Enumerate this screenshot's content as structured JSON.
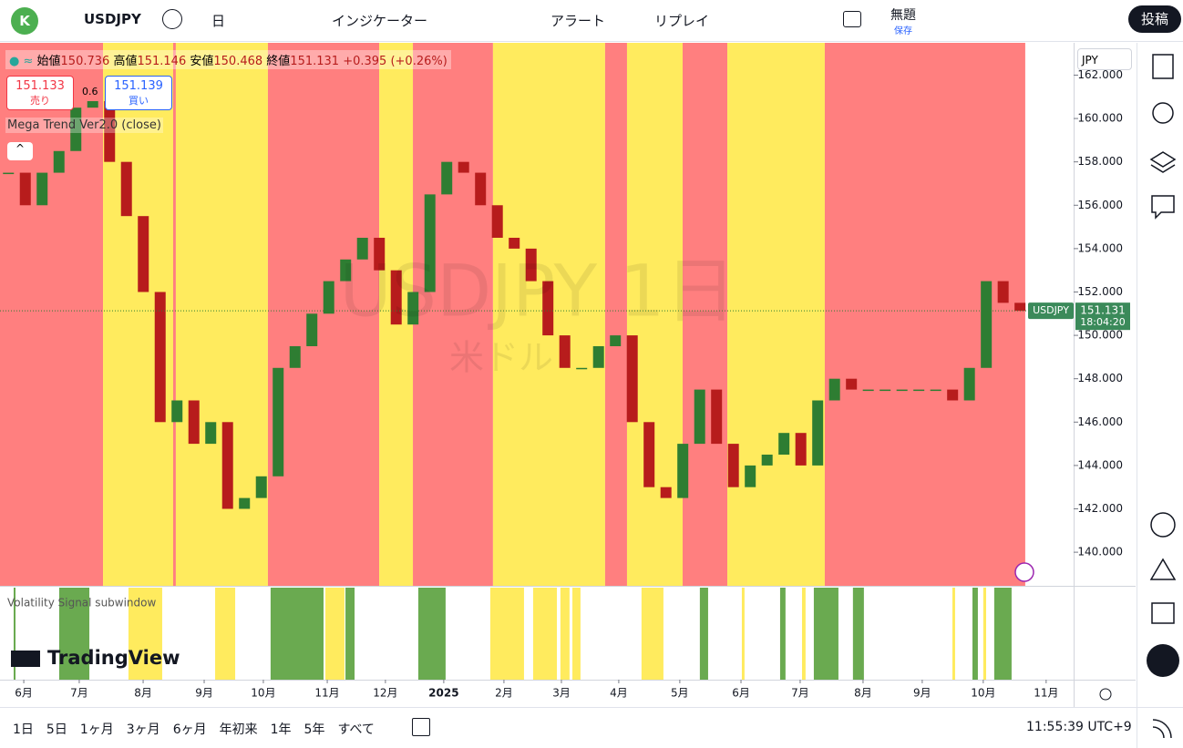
{
  "toolbar": {
    "avatar": "K",
    "symbol": "USDJPY",
    "interval": "日",
    "indicators": "インジケーター",
    "alert": "アラート",
    "replay": "リプレイ",
    "layout_name": "無題",
    "save": "保存",
    "publish": "投稿"
  },
  "legend": {
    "open_label": "始値",
    "open": 150.736,
    "high_label": "高値",
    "high": 151.146,
    "low_label": "安値",
    "low": 150.468,
    "close_label": "終値",
    "close": 151.131,
    "change": "+0.395",
    "change_pct": "(+0.26%)"
  },
  "trade": {
    "sell_price": "151.133",
    "sell": "売り",
    "spread": "0.6",
    "buy_price": "151.139",
    "buy": "買い"
  },
  "indicator": "Mega Trend Ver2.0 (close)",
  "watermark": {
    "title": "USDJPY 1日",
    "subtitle": "米ドル"
  },
  "subwindow_title": "Volatility Signal subwindow",
  "logo": "TradingView",
  "currency": "JPY",
  "price_tag": {
    "symbol": "USDJPY",
    "countdown": "18:04:20"
  },
  "ranges": [
    "1日",
    "5日",
    "1ヶ月",
    "3ヶ月",
    "6ヶ月",
    "年初来",
    "1年",
    "5年",
    "すべて"
  ],
  "clock": "11:55:39 UTC+9",
  "chart_data": {
    "type": "candlestick",
    "closes": [
      157.5,
      156,
      157.5,
      158.5,
      160.5,
      160.8,
      158,
      155.5,
      152,
      146,
      147,
      145,
      146,
      142,
      142.5,
      143.5,
      148.5,
      149.5,
      151,
      152.5,
      153.5,
      154.5,
      153,
      150.5,
      152,
      156.5,
      158,
      157.5,
      156,
      154.5,
      154,
      152.5,
      150,
      148.5,
      148.5,
      149.5,
      150,
      146,
      143,
      142.5,
      145,
      147.5,
      145,
      143,
      144,
      144.5,
      145.5,
      144,
      147,
      148,
      147.5,
      147.5,
      147.5,
      147.5,
      147.5,
      147.5,
      147,
      148.5,
      152.5,
      151.5,
      151.131
    ],
    "up_color": "#2e7d32",
    "down_color": "#b71c1c",
    "xlim": [
      0,
      63.68
    ],
    "ylim": [
      138.45,
      163.49
    ],
    "yticks": [
      {
        "value": 140,
        "label": "140.000"
      },
      {
        "value": 142,
        "label": "142.000"
      },
      {
        "value": 144,
        "label": "144.000"
      },
      {
        "value": 146,
        "label": "146.000"
      },
      {
        "value": 148,
        "label": "148.000"
      },
      {
        "value": 150,
        "label": "150.000"
      },
      {
        "value": 152,
        "label": "152.000"
      },
      {
        "value": 154,
        "label": "154.000"
      },
      {
        "value": 156,
        "label": "156.000"
      },
      {
        "value": 158,
        "label": "158.000"
      },
      {
        "value": 160,
        "label": "160.000"
      },
      {
        "value": 162,
        "label": "162.000"
      }
    ],
    "xticks": [
      {
        "value": 1.41,
        "label": "6月"
      },
      {
        "value": 4.7,
        "label": "7月"
      },
      {
        "value": 8.49,
        "label": "8月"
      },
      {
        "value": 12.11,
        "label": "9月"
      },
      {
        "value": 15.62,
        "label": "10月"
      },
      {
        "value": 19.41,
        "label": "11月"
      },
      {
        "value": 22.86,
        "label": "12月"
      },
      {
        "value": 26.32,
        "label": "2025"
      },
      {
        "value": 29.89,
        "label": "2月"
      },
      {
        "value": 33.3,
        "label": "3月"
      },
      {
        "value": 36.7,
        "label": "4月"
      },
      {
        "value": 40.32,
        "label": "5月"
      },
      {
        "value": 43.95,
        "label": "6月"
      },
      {
        "value": 47.46,
        "label": "7月"
      },
      {
        "value": 51.19,
        "label": "8月"
      },
      {
        "value": 54.7,
        "label": "9月"
      },
      {
        "value": 58.32,
        "label": "10月"
      },
      {
        "value": 62.05,
        "label": "11月"
      }
    ],
    "bands": [
      {
        "from": 0,
        "to": 6.11,
        "color": "#ff7f7f"
      },
      {
        "from": 6.11,
        "to": 10.27,
        "color": "#ffeb5e"
      },
      {
        "from": 10.27,
        "to": 10.43,
        "color": "#ff7f7f"
      },
      {
        "from": 10.43,
        "to": 15.89,
        "color": "#ffeb5e"
      },
      {
        "from": 15.89,
        "to": 22.49,
        "color": "#ff7f7f"
      },
      {
        "from": 22.49,
        "to": 24.49,
        "color": "#ffeb5e"
      },
      {
        "from": 24.49,
        "to": 29.24,
        "color": "#ff7f7f"
      },
      {
        "from": 29.24,
        "to": 35.89,
        "color": "#ffeb5e"
      },
      {
        "from": 35.89,
        "to": 37.19,
        "color": "#ff7f7f"
      },
      {
        "from": 37.19,
        "to": 40.49,
        "color": "#ffeb5e"
      },
      {
        "from": 40.49,
        "to": 43.14,
        "color": "#ff7f7f"
      },
      {
        "from": 43.14,
        "to": 48.92,
        "color": "#ffeb5e"
      },
      {
        "from": 48.92,
        "to": 60.81,
        "color": "#ff7f7f"
      }
    ],
    "signals": [
      {
        "from": 0.81,
        "to": 0.92,
        "color": "#6aaa50"
      },
      {
        "from": 3.51,
        "to": 5.3,
        "color": "#6aaa50"
      },
      {
        "from": 7.62,
        "to": 9.62,
        "color": "#ffeb5e"
      },
      {
        "from": 12.76,
        "to": 13.95,
        "color": "#ffeb5e"
      },
      {
        "from": 16.05,
        "to": 19.19,
        "color": "#6aaa50"
      },
      {
        "from": 19.3,
        "to": 20.43,
        "color": "#ffeb5e"
      },
      {
        "from": 20.49,
        "to": 21.03,
        "color": "#6aaa50"
      },
      {
        "from": 24.81,
        "to": 26.43,
        "color": "#6aaa50"
      },
      {
        "from": 29.08,
        "to": 31.08,
        "color": "#ffeb5e"
      },
      {
        "from": 31.62,
        "to": 33.03,
        "color": "#ffeb5e"
      },
      {
        "from": 33.24,
        "to": 33.78,
        "color": "#ffeb5e"
      },
      {
        "from": 33.95,
        "to": 34.43,
        "color": "#ffeb5e"
      },
      {
        "from": 38.05,
        "to": 39.35,
        "color": "#ffeb5e"
      },
      {
        "from": 41.51,
        "to": 42.0,
        "color": "#6aaa50"
      },
      {
        "from": 44.0,
        "to": 44.16,
        "color": "#ffeb5e"
      },
      {
        "from": 46.27,
        "to": 46.59,
        "color": "#6aaa50"
      },
      {
        "from": 47.57,
        "to": 47.78,
        "color": "#ffeb5e"
      },
      {
        "from": 48.27,
        "to": 49.73,
        "color": "#6aaa50"
      },
      {
        "from": 50.59,
        "to": 51.24,
        "color": "#6aaa50"
      },
      {
        "from": 56.49,
        "to": 56.65,
        "color": "#ffeb5e"
      },
      {
        "from": 57.68,
        "to": 58.0,
        "color": "#6aaa50"
      },
      {
        "from": 58.32,
        "to": 58.49,
        "color": "#ffeb5e"
      },
      {
        "from": 58.97,
        "to": 60.0,
        "color": "#6aaa50"
      }
    ],
    "last_price_line": true
  }
}
